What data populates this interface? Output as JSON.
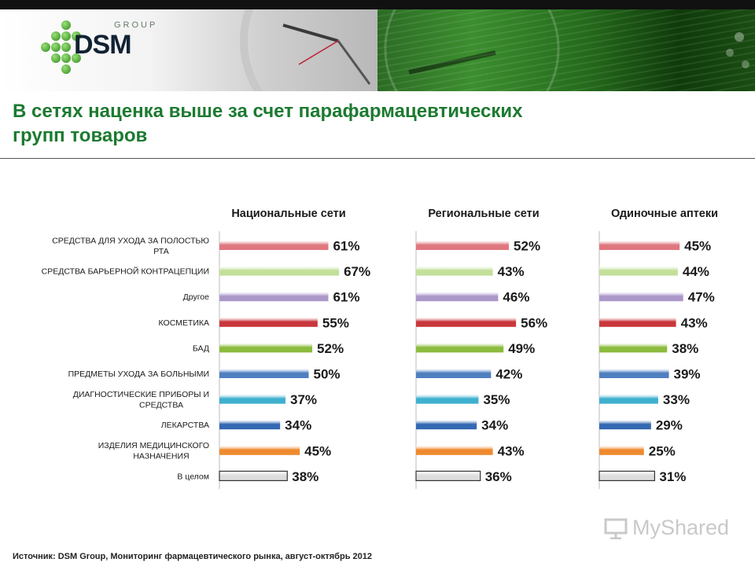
{
  "logo": {
    "group_text": "GROUP",
    "brand_text": "DSM"
  },
  "title": {
    "line1": "В сетях наценка выше за счет парафармацевтических",
    "line2": "групп товаров"
  },
  "source_text": "Источник: DSM Group, Мониторинг фармацевтического рынка, август-октябрь 2012",
  "watermark_text": "MyShared",
  "chart_data": {
    "type": "bar",
    "orientation": "horizontal",
    "categories": [
      "СРЕДСТВА ДЛЯ УХОДА ЗА ПОЛОСТЬЮ РТА",
      "СРЕДСТВА БАРЬЕРНОЙ КОНТРАЦЕПЦИИ",
      "Другое",
      "КОСМЕТИКА",
      "БАД",
      "ПРЕДМЕТЫ УХОДА ЗА БОЛЬНЫМИ",
      "ДИАГНОСТИЧЕСКИЕ ПРИБОРЫ И СРЕДСТВА",
      "ЛЕКАРСТВА",
      "ИЗДЕЛИЯ МЕДИЦИНСКОГО НАЗНАЧЕНИЯ",
      "В целом"
    ],
    "category_lines": [
      [
        "СРЕДСТВА ДЛЯ УХОДА ЗА ПОЛОСТЬЮ",
        "РТА"
      ],
      [
        "СРЕДСТВА БАРЬЕРНОЙ КОНТРАЦЕПЦИИ"
      ],
      [
        "Другое"
      ],
      [
        "КОСМЕТИКА"
      ],
      [
        "БАД"
      ],
      [
        "ПРЕДМЕТЫ УХОДА ЗА БОЛЬНЫМИ"
      ],
      [
        "ДИАГНОСТИЧЕСКИЕ ПРИБОРЫ И",
        "СРЕДСТВА"
      ],
      [
        "ЛЕКАРСТВА"
      ],
      [
        "ИЗДЕЛИЯ МЕДИЦИНСКОГО",
        "НАЗНАЧЕНИЯ"
      ],
      [
        "В целом"
      ]
    ],
    "category_colors": [
      "#e0777f",
      "#c3df9a",
      "#ac97c9",
      "#c9373c",
      "#8cbb3d",
      "#4f7fbf",
      "#3fb0cf",
      "#3468b2",
      "#ee8a2e",
      "#dddddd"
    ],
    "series": [
      {
        "name": "Национальные сети",
        "values": [
          61,
          67,
          61,
          55,
          52,
          50,
          37,
          34,
          45,
          38
        ]
      },
      {
        "name": "Региональные сети",
        "values": [
          52,
          43,
          46,
          56,
          49,
          42,
          35,
          34,
          43,
          36
        ]
      },
      {
        "name": "Одиночные аптеки",
        "values": [
          45,
          44,
          47,
          43,
          38,
          39,
          33,
          29,
          25,
          31
        ]
      }
    ],
    "value_suffix": "%",
    "xlim": [
      0,
      100
    ],
    "grid": false
  }
}
